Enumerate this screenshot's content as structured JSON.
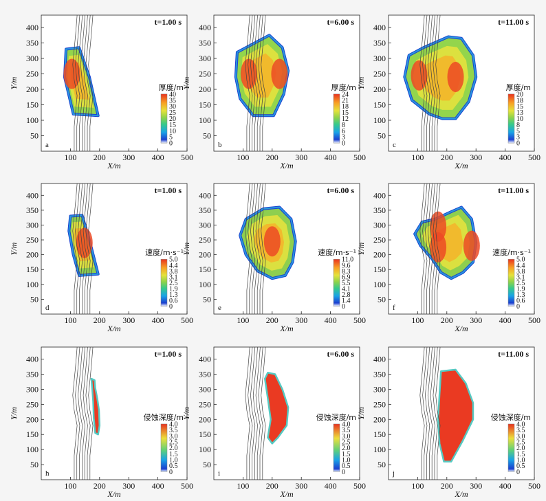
{
  "figure": {
    "xlabel": "X/m",
    "ylabel": "Y/m"
  },
  "chart_data": [
    {
      "type": "heatmap",
      "panel_label": "a",
      "time_label": "t=1.00 s",
      "xlabel": "X/m",
      "ylabel": "Y/m",
      "xlim": [
        0,
        500
      ],
      "ylim": [
        0,
        440
      ],
      "x_ticks": [
        "100",
        "200",
        "300",
        "400",
        "500"
      ],
      "y_ticks": [
        "50",
        "100",
        "150",
        "200",
        "250",
        "300",
        "350",
        "400"
      ],
      "colorbar": {
        "title": "厚度/m",
        "ticks": [
          "40",
          "35",
          "30",
          "25",
          "20",
          "15",
          "10",
          "5",
          "0"
        ]
      },
      "field": "thickness",
      "peak": "center",
      "region": [
        [
          85,
          330
        ],
        [
          130,
          335
        ],
        [
          165,
          240
        ],
        [
          195,
          115
        ],
        [
          110,
          120
        ],
        [
          80,
          240
        ]
      ],
      "hotspots": [
        [
          105,
          250
        ]
      ]
    },
    {
      "type": "heatmap",
      "panel_label": "b",
      "time_label": "t=6.00 s",
      "xlabel": "X/m",
      "ylabel": "Y/m",
      "xlim": [
        0,
        500
      ],
      "ylim": [
        0,
        440
      ],
      "x_ticks": [
        "100",
        "200",
        "300",
        "400",
        "500"
      ],
      "y_ticks": [
        "50",
        "100",
        "150",
        "200",
        "250",
        "300",
        "350",
        "400"
      ],
      "colorbar": {
        "title": "厚度/m",
        "ticks": [
          "24",
          "21",
          "18",
          "15",
          "12",
          "8",
          "6",
          "3",
          "0"
        ]
      },
      "field": "thickness",
      "peak": "center",
      "region": [
        [
          80,
          320
        ],
        [
          120,
          340
        ],
        [
          190,
          375
        ],
        [
          235,
          335
        ],
        [
          255,
          260
        ],
        [
          240,
          185
        ],
        [
          205,
          115
        ],
        [
          135,
          115
        ],
        [
          90,
          170
        ],
        [
          75,
          240
        ]
      ],
      "hotspots": [
        [
          120,
          250
        ],
        [
          225,
          250
        ]
      ]
    },
    {
      "type": "heatmap",
      "panel_label": "c",
      "time_label": "t=11.00 s",
      "xlabel": "X/m",
      "ylabel": "Y/m",
      "xlim": [
        0,
        500
      ],
      "ylim": [
        0,
        440
      ],
      "x_ticks": [
        "100",
        "200",
        "300",
        "400",
        "500"
      ],
      "y_ticks": [
        "50",
        "100",
        "150",
        "200",
        "250",
        "300",
        "350",
        "400"
      ],
      "colorbar": {
        "title": "厚度/m",
        "ticks": [
          "20",
          "18",
          "15",
          "13",
          "10",
          "8",
          "5",
          "3",
          "0"
        ]
      },
      "field": "thickness",
      "peak": "center",
      "region": [
        [
          70,
          310
        ],
        [
          120,
          335
        ],
        [
          205,
          370
        ],
        [
          250,
          365
        ],
        [
          290,
          310
        ],
        [
          300,
          240
        ],
        [
          275,
          160
        ],
        [
          230,
          105
        ],
        [
          185,
          105
        ],
        [
          140,
          120
        ],
        [
          80,
          165
        ],
        [
          55,
          240
        ]
      ],
      "hotspots": [
        [
          230,
          240
        ],
        [
          105,
          245
        ]
      ]
    },
    {
      "type": "heatmap",
      "panel_label": "d",
      "time_label": "t=1.00 s",
      "xlabel": "X/m",
      "ylabel": "Y/m",
      "xlim": [
        0,
        500
      ],
      "ylim": [
        0,
        440
      ],
      "x_ticks": [
        "100",
        "200",
        "300",
        "400",
        "500"
      ],
      "y_ticks": [
        "50",
        "100",
        "150",
        "200",
        "250",
        "300",
        "350",
        "400"
      ],
      "colorbar": {
        "title": "速度/m·s⁻¹",
        "ticks": [
          "5.0",
          "4.4",
          "3.8",
          "3.1",
          "2.5",
          "1.9",
          "1.3",
          "0.6",
          "0"
        ]
      },
      "field": "velocity",
      "peak": "center",
      "region": [
        [
          100,
          330
        ],
        [
          140,
          333
        ],
        [
          165,
          250
        ],
        [
          195,
          135
        ],
        [
          130,
          130
        ],
        [
          110,
          200
        ],
        [
          95,
          280
        ]
      ],
      "hotspots": [
        [
          148,
          240
        ]
      ]
    },
    {
      "type": "heatmap",
      "panel_label": "e",
      "time_label": "t=6.00 s",
      "xlabel": "X/m",
      "ylabel": "Y/m",
      "xlim": [
        0,
        500
      ],
      "ylim": [
        0,
        440
      ],
      "x_ticks": [
        "100",
        "200",
        "300",
        "400",
        "500"
      ],
      "y_ticks": [
        "50",
        "100",
        "150",
        "200",
        "250",
        "300",
        "350",
        "400"
      ],
      "colorbar": {
        "title": "速度/m·s⁻¹",
        "ticks": [
          "11.0",
          "9.6",
          "8.3",
          "6.9",
          "5.5",
          "4.1",
          "2.8",
          "1.4",
          "0"
        ]
      },
      "field": "velocity",
      "peak": "right",
      "region": [
        [
          110,
          320
        ],
        [
          170,
          355
        ],
        [
          225,
          360
        ],
        [
          265,
          320
        ],
        [
          280,
          245
        ],
        [
          270,
          175
        ],
        [
          245,
          130
        ],
        [
          200,
          120
        ],
        [
          150,
          145
        ],
        [
          110,
          200
        ],
        [
          90,
          265
        ]
      ],
      "hotspots": [
        [
          200,
          245
        ]
      ]
    },
    {
      "type": "heatmap",
      "panel_label": "f",
      "time_label": "t=11.00 s",
      "xlabel": "X/m",
      "ylabel": "Y/m",
      "xlim": [
        0,
        500
      ],
      "ylim": [
        0,
        440
      ],
      "x_ticks": [
        "100",
        "200",
        "300",
        "400",
        "500"
      ],
      "y_ticks": [
        "50",
        "100",
        "150",
        "200",
        "250",
        "300",
        "350",
        "400"
      ],
      "colorbar": {
        "title": "速度/m·s⁻¹",
        "ticks": [
          "5.0",
          "4.4",
          "3.8",
          "3.1",
          "2.5",
          "1.9",
          "1.3",
          "0.6",
          "0"
        ]
      },
      "field": "velocity",
      "peak": "ring",
      "region": [
        [
          115,
          310
        ],
        [
          160,
          320
        ],
        [
          215,
          345
        ],
        [
          250,
          360
        ],
        [
          285,
          320
        ],
        [
          300,
          240
        ],
        [
          290,
          175
        ],
        [
          255,
          140
        ],
        [
          215,
          120
        ],
        [
          180,
          140
        ],
        [
          150,
          185
        ],
        [
          110,
          230
        ],
        [
          90,
          270
        ]
      ],
      "hotspots": [
        [
          170,
          225
        ],
        [
          170,
          295
        ],
        [
          285,
          230
        ]
      ]
    },
    {
      "type": "heatmap",
      "panel_label": "h",
      "time_label": "t=1.00 s",
      "xlabel": "X/m",
      "ylabel": "Y/m",
      "xlim": [
        0,
        500
      ],
      "ylim": [
        0,
        440
      ],
      "x_ticks": [
        "100",
        "200",
        "300",
        "400",
        "500"
      ],
      "y_ticks": [
        "50",
        "100",
        "150",
        "200",
        "250",
        "300",
        "350",
        "400"
      ],
      "colorbar": {
        "title": "侵蚀深度/m",
        "ticks": [
          "4.0",
          "3.5",
          "3.0",
          "2.5",
          "2.0",
          "1.5",
          "1.0",
          "0.5",
          "0"
        ]
      },
      "field": "erosion",
      "peak": "uniform",
      "region": [
        [
          172,
          335
        ],
        [
          183,
          330
        ],
        [
          185,
          305
        ],
        [
          192,
          270
        ],
        [
          198,
          230
        ],
        [
          200,
          180
        ],
        [
          195,
          150
        ],
        [
          185,
          155
        ],
        [
          180,
          205
        ],
        [
          178,
          260
        ],
        [
          175,
          300
        ]
      ],
      "hotspots": []
    },
    {
      "type": "heatmap",
      "panel_label": "i",
      "time_label": "t=6.00 s",
      "xlabel": "X/m",
      "ylabel": "Y/m",
      "xlim": [
        0,
        500
      ],
      "ylim": [
        0,
        440
      ],
      "x_ticks": [
        "100",
        "200",
        "300",
        "400",
        "500"
      ],
      "y_ticks": [
        "50",
        "100",
        "150",
        "200",
        "250",
        "300",
        "350",
        "400"
      ],
      "colorbar": {
        "title": "侵蚀深度/m",
        "ticks": [
          "4.0",
          "3.5",
          "3.0",
          "2.5",
          "2.0",
          "1.5",
          "1.0",
          "0.5",
          "0"
        ]
      },
      "field": "erosion",
      "peak": "uniform",
      "region": [
        [
          185,
          355
        ],
        [
          210,
          350
        ],
        [
          235,
          300
        ],
        [
          255,
          240
        ],
        [
          250,
          180
        ],
        [
          220,
          140
        ],
        [
          200,
          120
        ],
        [
          185,
          140
        ],
        [
          195,
          200
        ],
        [
          185,
          270
        ],
        [
          175,
          335
        ]
      ],
      "hotspots": []
    },
    {
      "type": "heatmap",
      "panel_label": "j",
      "time_label": "t=11.00 s",
      "xlabel": "X/m",
      "ylabel": "Y/m",
      "xlim": [
        0,
        500
      ],
      "ylim": [
        0,
        440
      ],
      "x_ticks": [
        "100",
        "200",
        "300",
        "400",
        "500"
      ],
      "y_ticks": [
        "50",
        "100",
        "150",
        "200",
        "250",
        "300",
        "350",
        "400"
      ],
      "colorbar": {
        "title": "侵蚀深度/m",
        "ticks": [
          "4.0",
          "3.5",
          "3.0",
          "2.5",
          "2.0",
          "1.5",
          "1.0",
          "0.5",
          "0"
        ]
      },
      "field": "erosion",
      "peak": "uniform",
      "region": [
        [
          180,
          360
        ],
        [
          230,
          365
        ],
        [
          265,
          320
        ],
        [
          290,
          255
        ],
        [
          290,
          200
        ],
        [
          255,
          130
        ],
        [
          215,
          60
        ],
        [
          190,
          60
        ],
        [
          175,
          120
        ],
        [
          170,
          200
        ],
        [
          175,
          285
        ]
      ],
      "hotspots": []
    }
  ]
}
